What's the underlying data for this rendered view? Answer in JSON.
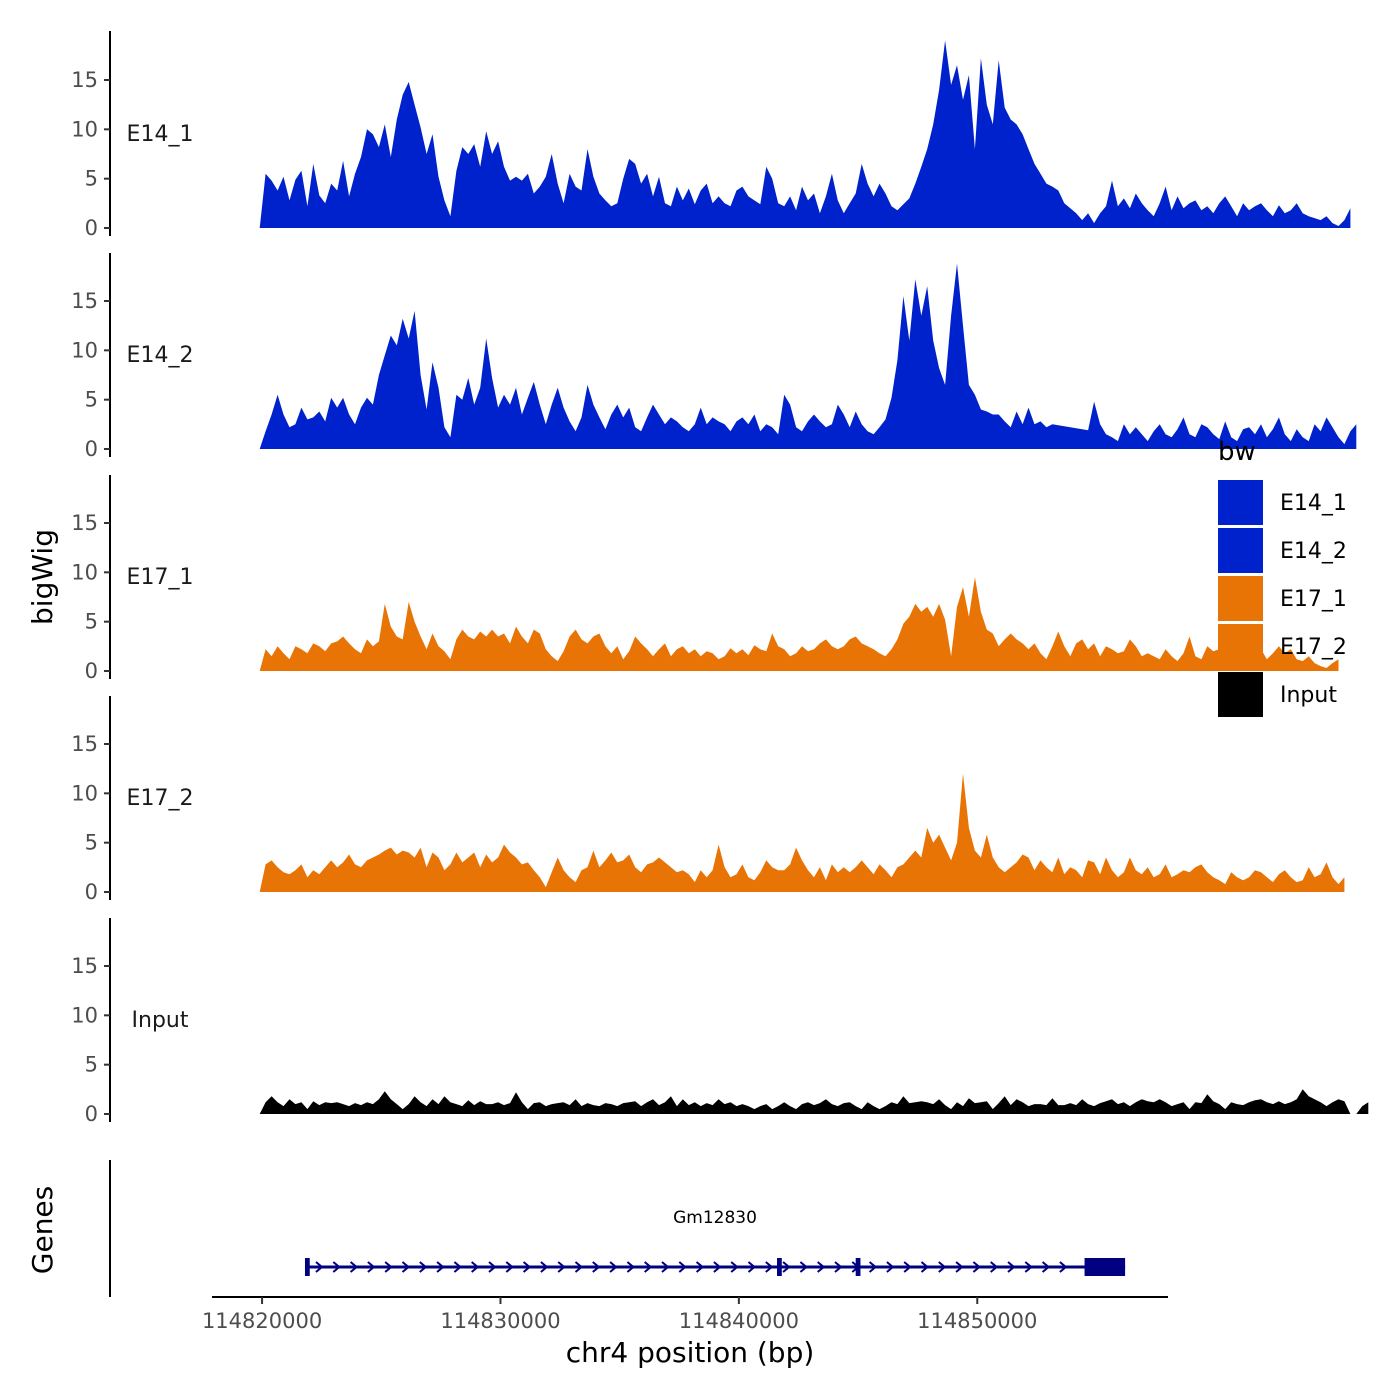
{
  "chart_data": {
    "type": "area",
    "ylabel": "bigWig",
    "xlabel": "chr4 position (bp)",
    "genes_label": "Genes",
    "ylim": [
      0,
      19
    ],
    "yticks": [
      0,
      5,
      10,
      15
    ],
    "xlim": [
      114817900,
      114858000
    ],
    "xticks": [
      114820000,
      114830000,
      114840000,
      114850000
    ],
    "x_start": 114819900,
    "x_step": 250,
    "legend": {
      "title": "bw",
      "entries": [
        {
          "label": "E14_1",
          "color": "#0022cc"
        },
        {
          "label": "E14_2",
          "color": "#0022cc"
        },
        {
          "label": "E17_1",
          "color": "#e87406"
        },
        {
          "label": "E17_2",
          "color": "#e87406"
        },
        {
          "label": "Input",
          "color": "#000000"
        }
      ]
    },
    "tracks": [
      {
        "name": "E14_1",
        "color": "#0022cc",
        "values": [
          0,
          5.5,
          4.8,
          3.8,
          5.2,
          2.8,
          4.9,
          5.8,
          2.2,
          6.5,
          3.3,
          2.5,
          4.5,
          3.8,
          6.8,
          3.2,
          5.5,
          7.2,
          10,
          9.5,
          8.2,
          10.5,
          7.2,
          11,
          13.5,
          14.8,
          12.5,
          10.2,
          7.5,
          9.5,
          5.2,
          2.8,
          1.2,
          5.8,
          8.2,
          7.5,
          8.5,
          6.2,
          9.8,
          7.5,
          8.8,
          6.2,
          4.8,
          5.2,
          4.8,
          5.5,
          3.5,
          4.2,
          5.2,
          7.5,
          4.5,
          2.5,
          5.5,
          4.2,
          3.8,
          8,
          5.2,
          3.5,
          2.8,
          2.2,
          2.5,
          5,
          7,
          6.5,
          4.5,
          5.5,
          3.2,
          5.2,
          2.5,
          2.2,
          4.2,
          2.8,
          4,
          2.4,
          3.8,
          4.5,
          2.5,
          3.2,
          2.5,
          2.2,
          3.8,
          4.2,
          3.2,
          2.8,
          2.4,
          6.2,
          5,
          2.5,
          2.2,
          3.2,
          1.8,
          4.2,
          2.8,
          3.5,
          1.5,
          3.2,
          5.5,
          2.8,
          1.5,
          2.5,
          3.5,
          6.5,
          4.5,
          3.2,
          4.5,
          3.5,
          2.2,
          1.8,
          2.4,
          3,
          4.5,
          6.2,
          8,
          10.5,
          14,
          19,
          14.5,
          16.5,
          13,
          15.5,
          8,
          17.2,
          12.5,
          10.5,
          17,
          12.2,
          11,
          10.5,
          9.5,
          8,
          6.5,
          5.5,
          4.5,
          4.2,
          3.8,
          2.5,
          2,
          1.5,
          0.8,
          1.5,
          0.5,
          1.5,
          2.2,
          4.8,
          2.2,
          3,
          2,
          3.5,
          2.5,
          1.8,
          1.2,
          2.5,
          4.2,
          1.8,
          3.2,
          2,
          2.5,
          2.8,
          1.8,
          2.2,
          1.5,
          2.5,
          3.2,
          2.2,
          1.2,
          2.5,
          1.8,
          2.2,
          2.5,
          1.8,
          1.2,
          2.3,
          1.5,
          1.8,
          2.5,
          1.5,
          1.2,
          1,
          0.8,
          1.2,
          0.5,
          0.2,
          0.8,
          2
        ]
      },
      {
        "name": "E14_2",
        "color": "#0022cc",
        "values": [
          0,
          1.8,
          3.5,
          5.5,
          3.5,
          2.2,
          2.5,
          4.2,
          3,
          3.2,
          3.8,
          2.8,
          5.2,
          4.2,
          5.2,
          3.5,
          2.5,
          4.2,
          5.2,
          4.5,
          7.5,
          9.5,
          11.5,
          10.5,
          13.2,
          11.2,
          14,
          7.5,
          4,
          8.8,
          6.2,
          2.2,
          1.2,
          5.5,
          5,
          7.2,
          4.5,
          6.2,
          11.2,
          7.2,
          4.2,
          5.5,
          4.5,
          6.2,
          3.5,
          5.2,
          6.8,
          4.5,
          2.5,
          4.5,
          6.2,
          4.2,
          2.8,
          1.8,
          3.2,
          6.5,
          4.5,
          3.2,
          2,
          3.5,
          4.5,
          3.2,
          4.2,
          2.2,
          1.8,
          3.2,
          4.5,
          3.5,
          2.5,
          3.2,
          2.8,
          2.2,
          1.8,
          2.5,
          4.2,
          2.5,
          3.2,
          2.8,
          2.5,
          1.8,
          2.8,
          3.2,
          2.5,
          3.5,
          1.8,
          2.5,
          2.2,
          1.5,
          5.5,
          4.5,
          2.2,
          1.8,
          2.8,
          3.5,
          2.8,
          2.2,
          2.5,
          4.5,
          3.5,
          2.2,
          3.8,
          2.5,
          1.8,
          1.5,
          2.2,
          3,
          5.2,
          9,
          15.5,
          11,
          17.2,
          13.5,
          16.5,
          11,
          8.2,
          6.5,
          13.5,
          18.8,
          12.5,
          6.5,
          5.5,
          4,
          3.8,
          3.5,
          3.5,
          2.8,
          2.2,
          3.8,
          2.5,
          4.2,
          2.5,
          2.8,
          2.2,
          2.5,
          2.4,
          2.3,
          2.2,
          2.1,
          2,
          1.9,
          4.8,
          2.5,
          1.5,
          1.2,
          0.8,
          2.5,
          1.5,
          2.2,
          1.5,
          0.8,
          1.8,
          2.5,
          1.5,
          1.2,
          2,
          3.2,
          1.5,
          1.2,
          2.5,
          2.2,
          1.5,
          1,
          2.8,
          1.2,
          0.8,
          2,
          2.2,
          1.5,
          2.5,
          1.2,
          2,
          3.2,
          1.5,
          0.8,
          2,
          1.2,
          0.8,
          2.5,
          1.8,
          3.2,
          2.2,
          1.2,
          0.5,
          1.8,
          2.5
        ]
      },
      {
        "name": "E17_1",
        "color": "#e87406",
        "values": [
          0,
          2.2,
          1.5,
          2.5,
          1.8,
          1.2,
          2.5,
          2.2,
          1.8,
          2.8,
          2.5,
          2,
          2.8,
          3,
          3.5,
          2.8,
          2.2,
          1.8,
          3.2,
          2.5,
          3,
          6.8,
          4.5,
          3.5,
          3.2,
          7,
          5,
          3.5,
          2.2,
          3.8,
          2.5,
          2,
          1.2,
          3.2,
          4.2,
          3.5,
          3.2,
          4,
          3.5,
          4.2,
          3.5,
          3.8,
          2.8,
          4.5,
          3.5,
          2.8,
          4.2,
          3.8,
          2.2,
          1.5,
          1,
          2,
          3.5,
          4.2,
          3.2,
          2.8,
          3.5,
          3.8,
          2.5,
          1.8,
          2.5,
          1.2,
          2,
          3.5,
          2.8,
          2.2,
          1.5,
          2.2,
          2.8,
          1.5,
          2.2,
          2.5,
          1.8,
          2.2,
          1.5,
          2,
          1.8,
          1.2,
          1.5,
          2.3,
          1.8,
          2.2,
          1.6,
          2.6,
          2.2,
          2,
          3.8,
          2.5,
          2.2,
          1.5,
          1.8,
          2.5,
          2,
          2.2,
          2.8,
          3.2,
          2.5,
          2.2,
          2.5,
          3.2,
          3.5,
          2.8,
          2.5,
          2.2,
          1.8,
          1.5,
          2.2,
          3.2,
          4.8,
          5.5,
          6.8,
          6,
          6.5,
          5.5,
          6.8,
          5.2,
          1.5,
          6.5,
          8.5,
          5.5,
          9.5,
          6,
          4.2,
          3.8,
          2.5,
          3.2,
          3.8,
          3.2,
          2.8,
          2.2,
          2.8,
          1.8,
          1.2,
          2.5,
          4,
          2.5,
          1.5,
          2.8,
          3.2,
          2.2,
          2.8,
          1.5,
          2.5,
          2.2,
          1.8,
          2,
          3.2,
          2.5,
          1.5,
          1.8,
          1.5,
          1.2,
          2.2,
          1.5,
          1,
          1.8,
          3.5,
          1.5,
          1.2,
          2.5,
          2,
          2.2,
          1.5,
          1.8,
          2.5,
          2.2,
          1.8,
          1.5,
          2.2,
          1.2,
          1.8,
          2.5,
          1.8,
          2.2,
          1.2,
          1,
          1.5,
          0.8,
          0.5,
          0.3,
          0.8,
          1.2
        ]
      },
      {
        "name": "E17_2",
        "color": "#e87406",
        "values": [
          0,
          2.8,
          3.2,
          2.5,
          2,
          1.8,
          2.2,
          2.8,
          1.5,
          2.2,
          1.8,
          2.5,
          3.2,
          2.5,
          3,
          3.8,
          2.8,
          2.5,
          3.2,
          3.5,
          3.8,
          4.2,
          4.5,
          3.8,
          4.2,
          4,
          3.5,
          4.5,
          2.5,
          4,
          3.5,
          2.2,
          2.8,
          4,
          3,
          3.5,
          4,
          2.5,
          3.8,
          3,
          3.5,
          4.8,
          4,
          3.5,
          2.8,
          3,
          2.2,
          1.5,
          0.5,
          2,
          3.5,
          2.2,
          1.5,
          1,
          2.2,
          2.5,
          4.2,
          2.5,
          3.2,
          4,
          3,
          3.2,
          3.8,
          2.5,
          2,
          2.8,
          3,
          3.5,
          3,
          2.5,
          2,
          2.2,
          1.8,
          1,
          2.2,
          1.5,
          2.2,
          4.8,
          2.5,
          1.5,
          1.8,
          2.8,
          1.5,
          1.2,
          2,
          3.2,
          2.5,
          2.2,
          2.2,
          2.8,
          4.5,
          3.2,
          2.2,
          1.5,
          2.5,
          1.2,
          2.8,
          2,
          2.5,
          2,
          2.5,
          3.2,
          2.5,
          1.8,
          2.8,
          2.2,
          1.5,
          2.5,
          2.8,
          3.5,
          4.2,
          3.5,
          6.5,
          5,
          5.8,
          4.5,
          3.2,
          5,
          12,
          6.5,
          4.2,
          3.5,
          5.8,
          3.5,
          2.5,
          2,
          2.5,
          3,
          3.8,
          3.5,
          2.2,
          3.2,
          2.5,
          2,
          3.5,
          1.8,
          2.5,
          2.2,
          1.5,
          3.2,
          3,
          1.8,
          3.5,
          2.2,
          1.5,
          2,
          3.5,
          2.2,
          1.8,
          2.5,
          1.5,
          1.8,
          2.8,
          1.5,
          1.8,
          2.2,
          2,
          2.5,
          2.8,
          2,
          1.5,
          1.2,
          0.8,
          2,
          1.5,
          1.2,
          1.5,
          2.2,
          2,
          1.5,
          1,
          1.8,
          2.2,
          1.5,
          1,
          1.2,
          2.5,
          1.5,
          1.8,
          3,
          1.5,
          0.8,
          1.5
        ]
      },
      {
        "name": "Input",
        "color": "#000000",
        "values": [
          0,
          1.2,
          1.8,
          1.2,
          0.8,
          1.5,
          1,
          1.2,
          0.5,
          1.3,
          0.9,
          1.2,
          1.1,
          1.2,
          1,
          0.8,
          1.1,
          0.9,
          1.2,
          1,
          1.5,
          2.3,
          1.5,
          1,
          0.5,
          1,
          1.8,
          1.2,
          0.8,
          1.5,
          1,
          1.8,
          1.2,
          1,
          0.8,
          1.4,
          0.9,
          1.3,
          1,
          1,
          1.2,
          0.9,
          1.1,
          2.2,
          1.2,
          0.5,
          1.1,
          1.2,
          0.8,
          1,
          1.1,
          1.2,
          0.9,
          1.5,
          0.8,
          1.1,
          0.9,
          0.8,
          1.1,
          1,
          0.8,
          1.1,
          1.2,
          1.3,
          0.8,
          1.2,
          1.5,
          0.9,
          1.2,
          1.8,
          0.8,
          1.5,
          0.9,
          1.2,
          0.8,
          1.1,
          0.9,
          1.5,
          1,
          1.2,
          0.8,
          1,
          0.8,
          0.5,
          0.8,
          1,
          0.5,
          0.8,
          1.2,
          0.8,
          0.5,
          1,
          1.2,
          0.9,
          1.1,
          1.5,
          1,
          0.8,
          1.1,
          1.2,
          0.8,
          0.5,
          1.2,
          0.8,
          0.5,
          0.8,
          1.2,
          1,
          1.8,
          1.1,
          1.2,
          1.3,
          1.2,
          1,
          1.5,
          0.9,
          0.5,
          1.2,
          0.8,
          1.6,
          1.1,
          1.2,
          1.3,
          0.5,
          1.1,
          1.8,
          0.9,
          1.5,
          1.2,
          0.8,
          1,
          1,
          0.9,
          1.6,
          0.9,
          0.9,
          1.1,
          0.9,
          1.5,
          1,
          0.8,
          1.1,
          1.3,
          1.5,
          1,
          1.2,
          0.8,
          1.2,
          1.5,
          1.3,
          1.2,
          1.5,
          1.2,
          0.8,
          1,
          1.2,
          0.5,
          1.2,
          1.1,
          2,
          1.3,
          1,
          0.5,
          1.2,
          1,
          0.9,
          1.2,
          1.4,
          1.5,
          1.2,
          1,
          1.3,
          1,
          1.2,
          1.5,
          2.5,
          1.8,
          1.5,
          1.2,
          0.8,
          1.2,
          1.5,
          1.3,
          0,
          0,
          0.8,
          1.2
        ]
      }
    ],
    "gene": {
      "name": "Gm12830",
      "color": "#000080",
      "start": 114821800,
      "end": 114856200,
      "exons": [
        {
          "start": 114821800,
          "end": 114822000
        },
        {
          "start": 114841600,
          "end": 114841800
        },
        {
          "start": 114844900,
          "end": 114845100
        },
        {
          "start": 114854500,
          "end": 114856200
        }
      ]
    }
  }
}
